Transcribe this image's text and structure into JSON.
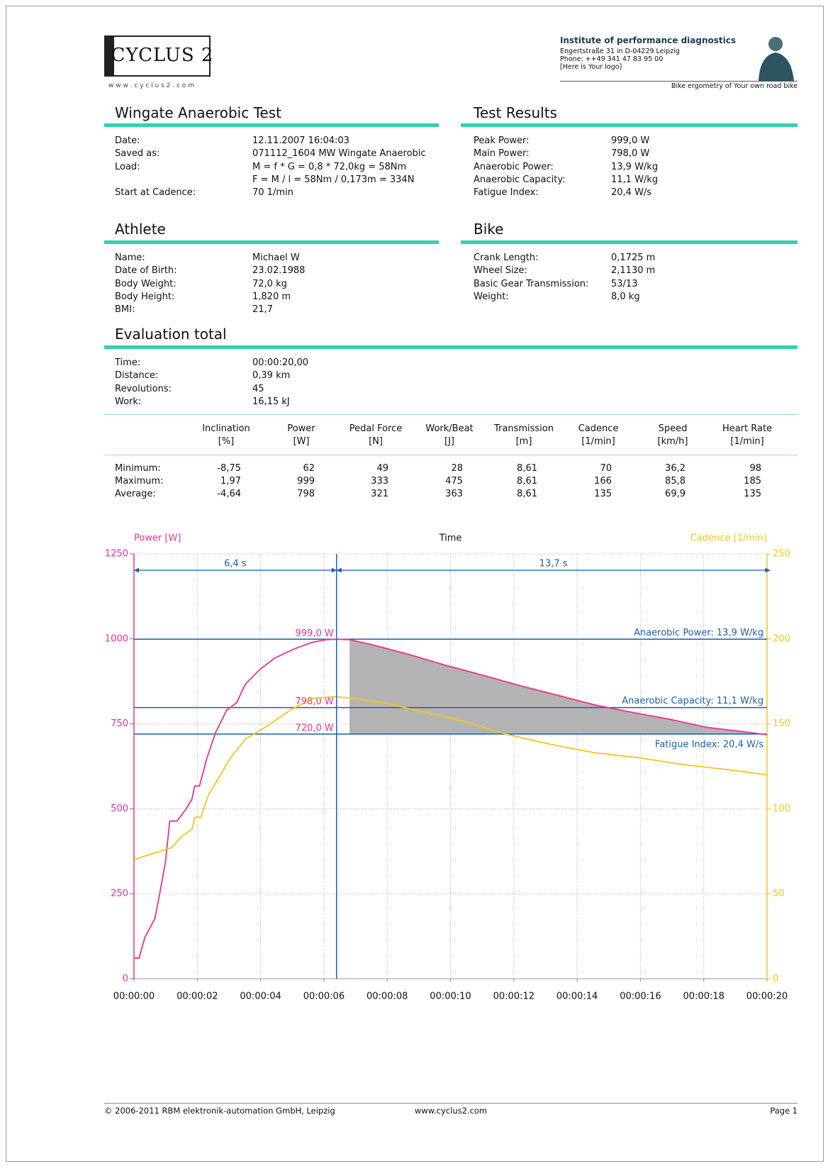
{
  "header": {
    "logo": "CYCLUS 2",
    "url": "w w w . c y c l u s 2 . c o m",
    "institute": "Institute of performance diagnostics",
    "address": [
      "Engertstraße 31 in D-04229 Leipzig",
      "Phone:  ++49 341 47 83 95 00",
      "[Here is Your logo]"
    ],
    "tagline": "Bike ergometry of Your own road bike"
  },
  "sections": [
    {
      "title": "Wingate Anaerobic Test",
      "rows": [
        {
          "label": "Date:",
          "value": "12.11.2007 16:04:03"
        },
        {
          "label": "Saved as:",
          "value": "071112_1604 MW Wingate Anaerobic"
        },
        {
          "label": "Load:",
          "value": "M = f * G = 0,8 * 72,0kg = 58Nm"
        },
        {
          "value": "F = M / l = 58Nm / 0,173m = 334N"
        },
        {
          "label": "Start at Cadence:",
          "value": "70 1/min"
        }
      ]
    },
    {
      "title": "Test Results",
      "rows": [
        {
          "label": "Peak Power:",
          "value": "999,0 W"
        },
        {
          "label": "Main Power:",
          "value": "798,0 W"
        },
        {
          "label": "Anaerobic Power:",
          "value": "13,9 W/kg"
        },
        {
          "label": "Anaerobic Capacity:",
          "value": "11,1 W/kg"
        },
        {
          "label": "Fatigue Index:",
          "value": "20,4 W/s"
        }
      ]
    },
    {
      "title": "Athlete",
      "rows": [
        {
          "label": "Name:",
          "value": "Michael W"
        },
        {
          "label": "Date of Birth:",
          "value": "23.02.1988"
        },
        {
          "label": "Body Weight:",
          "value": "72,0 kg"
        },
        {
          "label": "Body Height:",
          "value": "1,820 m"
        },
        {
          "label": "BMI:",
          "value": "21,7"
        }
      ]
    },
    {
      "title": "Bike",
      "rows": [
        {
          "label": "Crank Length:",
          "value": "0,1725 m"
        },
        {
          "label": "Wheel Size:",
          "value": "2,1130 m"
        },
        {
          "label": "Basic Gear Transmission:",
          "value": "53/13"
        },
        {
          "label": "Weight:",
          "value": "8,0 kg"
        }
      ]
    },
    {
      "title": "Evaluation total",
      "rows": [
        {
          "label": "Time:",
          "value": "00:00:20,00"
        },
        {
          "label": "Distance:",
          "value": "0,39 km"
        },
        {
          "label": "Revolutions:",
          "value": "45"
        },
        {
          "label": "Work:",
          "value": "16,15 kJ"
        }
      ]
    }
  ],
  "table": {
    "columns": [
      [
        "Inclination",
        "[%]"
      ],
      [
        "Power",
        "[W]"
      ],
      [
        "Pedal Force",
        "[N]"
      ],
      [
        "Work/Beat",
        "[J]"
      ],
      [
        "Transmission",
        "[m]"
      ],
      [
        "Cadence",
        "[1/min]"
      ],
      [
        "Speed",
        "[km/h]"
      ],
      [
        "Heart Rate",
        "[1/min]"
      ]
    ],
    "rows": [
      {
        "label": "Minimum:",
        "values": [
          "-8,75",
          "62",
          "49",
          "28",
          "8,61",
          "70",
          "36,2",
          "98"
        ]
      },
      {
        "label": "Maximum:",
        "values": [
          "1,97",
          "999",
          "333",
          "475",
          "8,61",
          "166",
          "85,8",
          "185"
        ]
      },
      {
        "label": "Average:",
        "values": [
          "-4,64",
          "798",
          "321",
          "363",
          "8,61",
          "135",
          "69,9",
          "135"
        ]
      }
    ]
  },
  "chart_data": {
    "type": "line",
    "x_label": "Time",
    "xlim": [
      0,
      20
    ],
    "xticks": [
      {
        "value": 0,
        "label": "00:00:00"
      },
      {
        "value": 2,
        "label": "00:00:02"
      },
      {
        "value": 4,
        "label": "00:00:04"
      },
      {
        "value": 6,
        "label": "00:00:06"
      },
      {
        "value": 8,
        "label": "00:00:08"
      },
      {
        "value": 10,
        "label": "00:00:10"
      },
      {
        "value": 12,
        "label": "00:00:12"
      },
      {
        "value": 14,
        "label": "00:00:14"
      },
      {
        "value": 16,
        "label": "00:00:16"
      },
      {
        "value": 18,
        "label": "00:00:18"
      },
      {
        "value": 20,
        "label": "00:00:20"
      }
    ],
    "ylim": [
      0,
      1250
    ],
    "yticks": [
      0,
      250,
      500,
      750,
      1000,
      1250
    ],
    "y2lim": [
      0,
      250
    ],
    "y2ticks": [
      0,
      50,
      100,
      150,
      200,
      250
    ],
    "grid": true,
    "series": [
      {
        "name": "Power [W]",
        "color": "#e8338f",
        "x": [
          0,
          0.16,
          0.35,
          0.66,
          0.82,
          0.99,
          1.13,
          1.36,
          1.64,
          1.83,
          1.92,
          2.07,
          2.3,
          2.58,
          2.93,
          3.24,
          3.52,
          3.99,
          4.46,
          5.05,
          5.63,
          6.1,
          6.38,
          6.81,
          7.51,
          8.69,
          9.86,
          11.03,
          12.21,
          13.38,
          14.55,
          15.73,
          16.9,
          18.08,
          19.25,
          20
        ],
        "values": [
          61,
          61,
          123,
          177,
          254,
          341,
          464,
          464,
          499,
          528,
          567,
          567,
          648,
          725,
          790,
          812,
          867,
          911,
          944,
          970,
          990,
          998,
          999,
          998,
          983,
          954,
          922,
          893,
          862,
          834,
          806,
          784,
          764,
          740,
          727,
          718
        ]
      },
      {
        "name": "Cadence [1/min]",
        "color": "#f5c518",
        "axis": "y2",
        "x": [
          0,
          0.47,
          1.17,
          1.53,
          1.83,
          1.92,
          2.11,
          2.35,
          2.7,
          3.05,
          3.52,
          4.23,
          4.93,
          5.63,
          6.34,
          6.92,
          7.98,
          9.15,
          10.33,
          11.74,
          13.15,
          14.55,
          15.96,
          17.37,
          18.78,
          20
        ],
        "values": [
          70,
          73,
          77,
          84,
          88,
          95,
          95,
          108,
          119,
          130,
          141,
          149,
          158,
          165,
          166,
          165,
          162,
          157,
          152,
          144,
          138,
          133,
          130,
          126,
          123,
          120
        ]
      }
    ],
    "reference_lines": [
      {
        "value": 999,
        "label": "999,0 W",
        "note": "Anaerobic Power: 13,9 W/kg"
      },
      {
        "value": 798,
        "label": "798,0 W",
        "note": "Anaerobic Capacity:  11,1 W/kg"
      },
      {
        "value": 720,
        "label": "720,0 W",
        "note": "Fatigue Index: 20,4 W/s"
      }
    ],
    "intervals": [
      {
        "value": 6.4,
        "label": "6,4 s"
      },
      {
        "value": 13.7,
        "label": "13,7 s"
      }
    ]
  },
  "footer": {
    "copyright": "© 2006-2011 RBM elektronik-automation GmbH, Leipzig",
    "url": "www.cyclus2.com",
    "page": "Page 1"
  }
}
